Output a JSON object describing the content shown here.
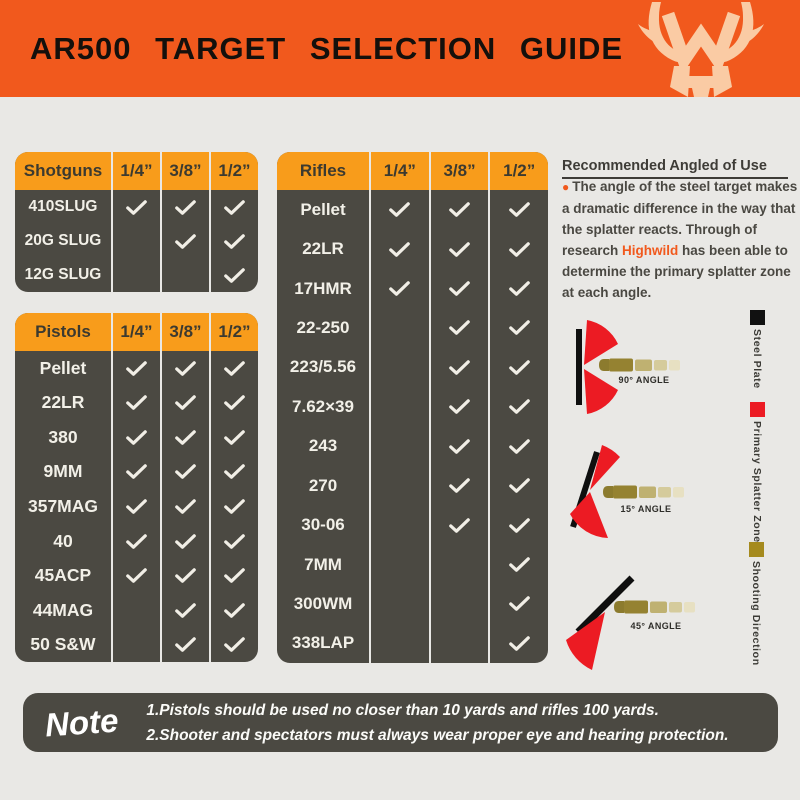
{
  "header": {
    "title": "AR500 TARGET SELECTION GUIDE",
    "banner_color": "#F1591D",
    "logo_icon": "deer-antlers-logo"
  },
  "tables": [
    {
      "id": "shotguns",
      "columns": [
        "Shotguns",
        "1/4”",
        "3/8”",
        "1/2”"
      ],
      "rows": [
        {
          "label": "410SLUG",
          "checks": [
            1,
            1,
            1
          ]
        },
        {
          "label": "20G SLUG",
          "checks": [
            0,
            1,
            1
          ]
        },
        {
          "label": "12G SLUG",
          "checks": [
            0,
            0,
            1
          ]
        }
      ]
    },
    {
      "id": "pistols",
      "columns": [
        "Pistols",
        "1/4”",
        "3/8”",
        "1/2”"
      ],
      "rows": [
        {
          "label": "Pellet",
          "checks": [
            1,
            1,
            1
          ]
        },
        {
          "label": "22LR",
          "checks": [
            1,
            1,
            1
          ]
        },
        {
          "label": "380",
          "checks": [
            1,
            1,
            1
          ]
        },
        {
          "label": "9MM",
          "checks": [
            1,
            1,
            1
          ]
        },
        {
          "label": "357MAG",
          "checks": [
            1,
            1,
            1
          ]
        },
        {
          "label": "40",
          "checks": [
            1,
            1,
            1
          ]
        },
        {
          "label": "45ACP",
          "checks": [
            1,
            1,
            1
          ]
        },
        {
          "label": "44MAG",
          "checks": [
            0,
            1,
            1
          ]
        },
        {
          "label": "50 S&W",
          "checks": [
            0,
            1,
            1
          ]
        }
      ]
    },
    {
      "id": "rifles",
      "columns": [
        "Rifles",
        "1/4”",
        "3/8”",
        "1/2”"
      ],
      "rows": [
        {
          "label": "Pellet",
          "checks": [
            1,
            1,
            1
          ]
        },
        {
          "label": "22LR",
          "checks": [
            1,
            1,
            1
          ]
        },
        {
          "label": "17HMR",
          "checks": [
            1,
            1,
            1
          ]
        },
        {
          "label": "22-250",
          "checks": [
            0,
            1,
            1
          ]
        },
        {
          "label": "223/5.56",
          "checks": [
            0,
            1,
            1
          ]
        },
        {
          "label": "7.62×39",
          "checks": [
            0,
            1,
            1
          ]
        },
        {
          "label": "243",
          "checks": [
            0,
            1,
            1
          ]
        },
        {
          "label": "270",
          "checks": [
            0,
            1,
            1
          ]
        },
        {
          "label": "30-06",
          "checks": [
            0,
            1,
            1
          ]
        },
        {
          "label": "7MM",
          "checks": [
            0,
            0,
            1
          ]
        },
        {
          "label": "300WM",
          "checks": [
            0,
            0,
            1
          ]
        },
        {
          "label": "338LAP",
          "checks": [
            0,
            0,
            1
          ]
        }
      ]
    }
  ],
  "recommendation": {
    "heading": "Recommended Angled of Use",
    "marker": "●",
    "body_before": "The angle of the steel target makes a dramatic difference in the way that the splatter reacts. Through of research ",
    "brand": "Highwild",
    "body_after": " has been able to determine the primary splatter zone at each angle."
  },
  "diagrams": [
    {
      "label": "90° ANGLE"
    },
    {
      "label": "15° ANGLE"
    },
    {
      "label": "45° ANGLE"
    }
  ],
  "legend": [
    {
      "label": "Steel Plate",
      "color": "#111111"
    },
    {
      "label": "Primary Splatter Zone",
      "color": "#EC1B23"
    },
    {
      "label": "Shooting Direction",
      "color": "#A58A1E"
    }
  ],
  "note": {
    "title": "Note",
    "lines": [
      "1.Pistols should be used no closer than 10 yards and rifles 100 yards.",
      "2.Shooter and spectators must always wear proper eye and hearing protection."
    ]
  },
  "colors": {
    "page_bg": "#E9E8E5",
    "table_bg": "#4B4942",
    "table_header": "#F89C1B",
    "checkmark": "#F1EEE6",
    "splatter_red": "#EC1B23",
    "accent_orange": "#F1591D"
  }
}
